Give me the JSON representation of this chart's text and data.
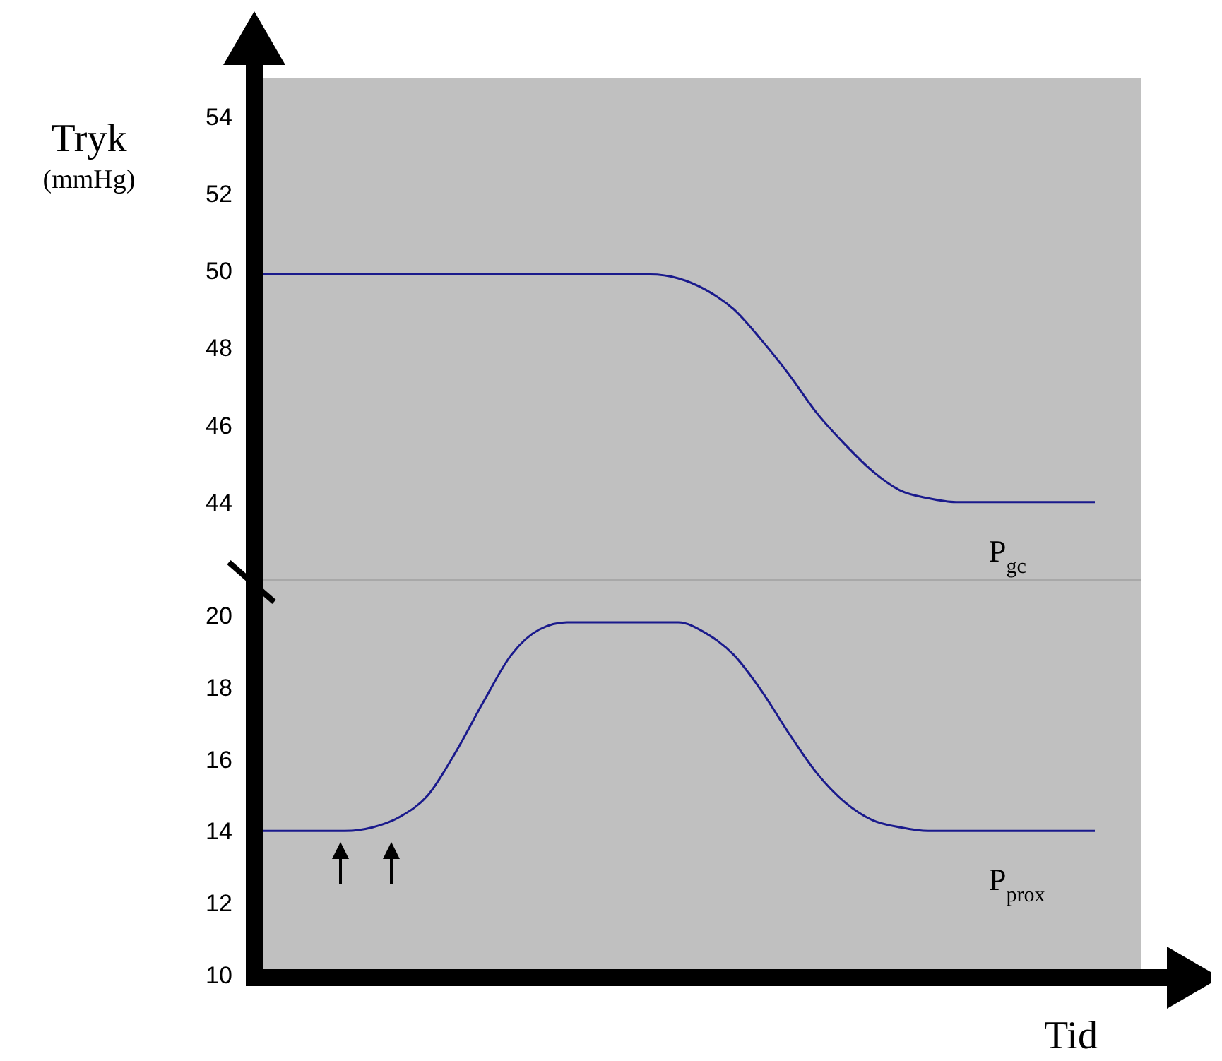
{
  "chart_data": [
    {
      "type": "line",
      "ylabel": "Tryk\n(mmHg)",
      "tick_labels": "y",
      "ylim": [
        42,
        55
      ],
      "yticks": [
        44,
        46,
        48,
        50,
        52,
        54
      ],
      "categories": [
        null,
        null,
        null,
        null,
        null,
        null,
        null,
        null,
        null,
        null,
        null,
        null,
        null,
        null,
        null,
        null,
        null,
        null,
        null,
        null,
        null,
        null,
        null,
        null,
        null,
        null,
        null,
        null,
        null,
        null,
        null
      ],
      "series": [
        {
          "name": "P$_{gc}$",
          "color": "#1a1a8c",
          "values": [
            49.9,
            49.9,
            49.9,
            49.9,
            49.9,
            49.9,
            49.9,
            49.9,
            49.9,
            49.9,
            49.9,
            49.9,
            49.9,
            49.9,
            49.9,
            49.8,
            49.5,
            49.0,
            48.2,
            47.3,
            46.3,
            45.5,
            44.8,
            44.3,
            44.1,
            44.0,
            44.0,
            44.0,
            44.0,
            44.0,
            44.0
          ]
        }
      ]
    },
    {
      "type": "line",
      "xlabel": "Tid",
      "tick_labels": "y",
      "ylim": [
        10,
        21
      ],
      "yticks": [
        10,
        12,
        14,
        16,
        18,
        20
      ],
      "categories": [
        null,
        null,
        null,
        null,
        null,
        null,
        null,
        null,
        null,
        null,
        null,
        null,
        null,
        null,
        null,
        null,
        null,
        null,
        null,
        null,
        null,
        null,
        null,
        null,
        null,
        null,
        null,
        null,
        null,
        null,
        null
      ],
      "series": [
        {
          "name": "P$_{prox}$",
          "color": "#1a1a8c",
          "values": [
            14.0,
            14.0,
            14.0,
            14.0,
            14.1,
            14.4,
            15.0,
            16.2,
            17.6,
            18.9,
            19.6,
            19.8,
            19.8,
            19.8,
            19.8,
            19.8,
            19.5,
            18.9,
            17.9,
            16.7,
            15.6,
            14.8,
            14.3,
            14.1,
            14.0,
            14.0,
            14.0,
            14.0,
            14.0,
            14.0,
            14.0
          ]
        }
      ]
    }
  ]
}
